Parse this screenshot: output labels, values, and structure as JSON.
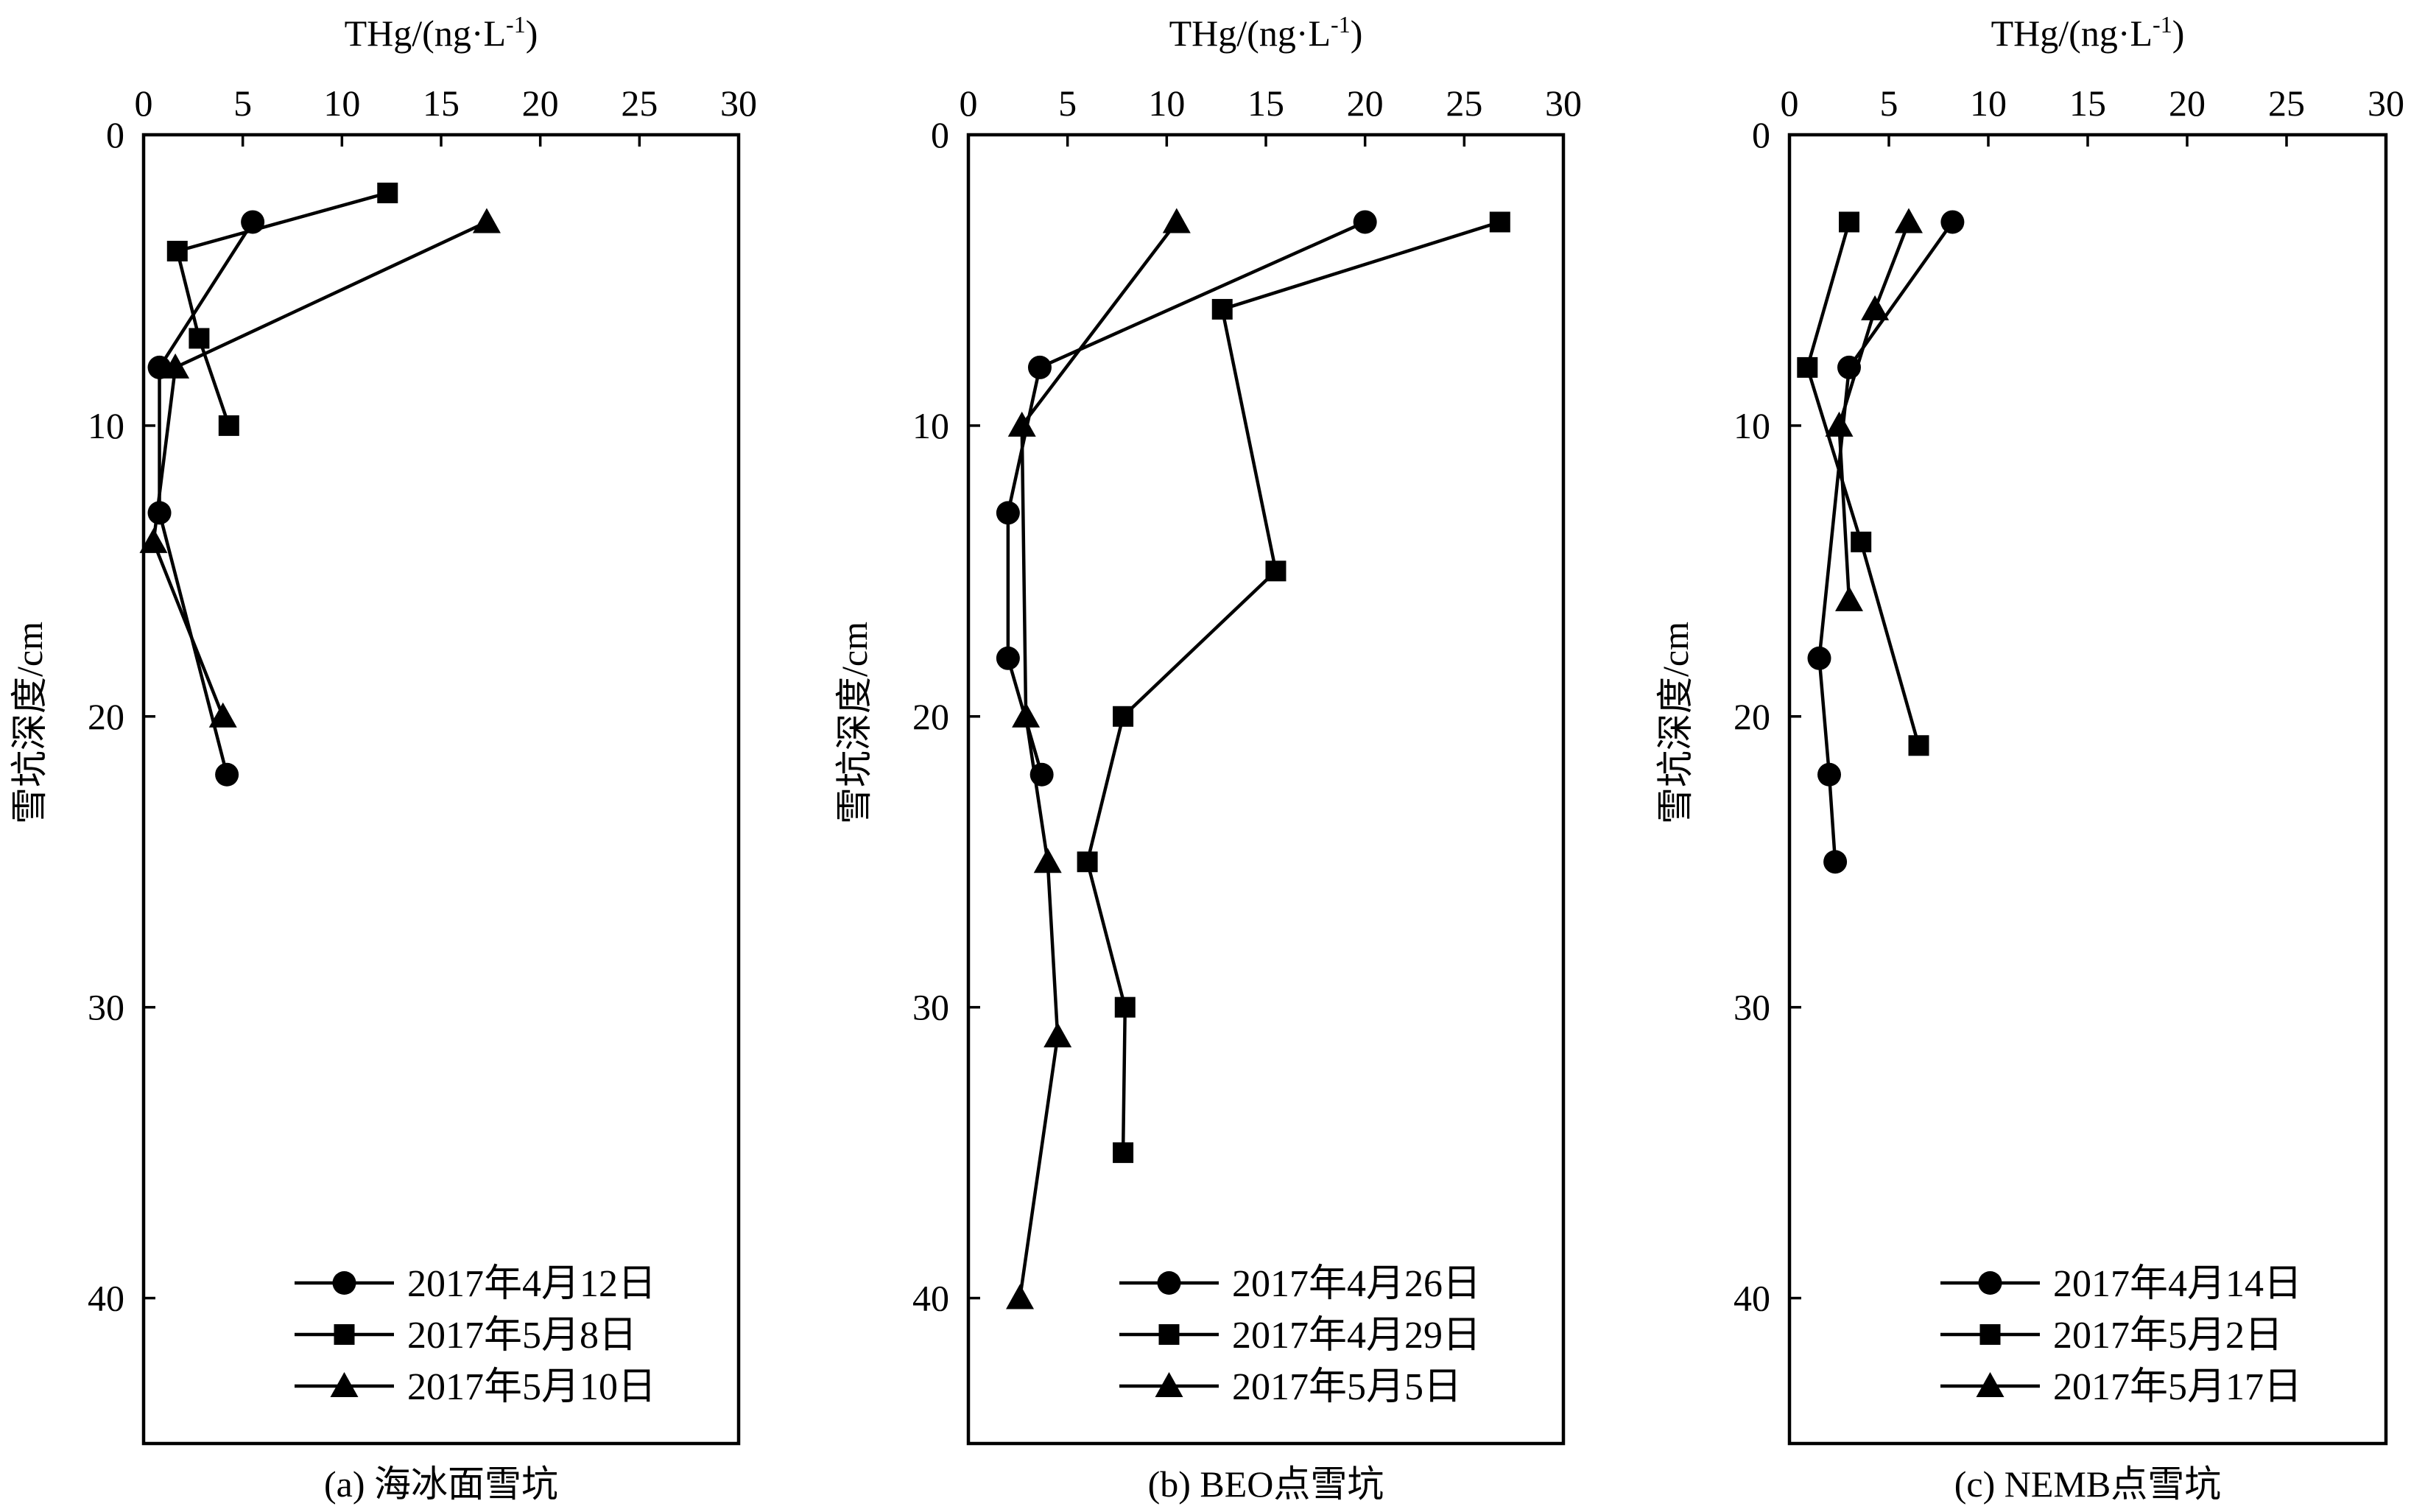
{
  "chart_data": [
    {
      "type": "line",
      "caption": "(a) 海冰面雪坑",
      "xlabel": "THg/(ng·L",
      "xlabel_sup": "-1",
      "xlabel_end": ")",
      "ylabel": "雪坑深度/cm",
      "xlim": [
        0,
        30
      ],
      "ylim": [
        0,
        45
      ],
      "y_inverted": true,
      "x_axis_position": "top",
      "xticks": [
        0,
        5,
        10,
        15,
        20,
        25,
        30
      ],
      "yticks": [
        0,
        10,
        20,
        30,
        40
      ],
      "legend_position": "bottom-right",
      "series": [
        {
          "name": "2017年4月12日",
          "marker": "circle",
          "points": [
            {
              "x": 5.5,
              "y": 3
            },
            {
              "x": 0.8,
              "y": 8
            },
            {
              "x": 0.8,
              "y": 13
            },
            {
              "x": 4.2,
              "y": 22
            }
          ]
        },
        {
          "name": "2017年5月8日",
          "marker": "square",
          "points": [
            {
              "x": 12.3,
              "y": 2
            },
            {
              "x": 1.7,
              "y": 4
            },
            {
              "x": 2.8,
              "y": 7
            },
            {
              "x": 4.3,
              "y": 10
            }
          ]
        },
        {
          "name": "2017年5月10日",
          "marker": "triangle",
          "points": [
            {
              "x": 17.3,
              "y": 3
            },
            {
              "x": 1.6,
              "y": 8
            },
            {
              "x": 0.5,
              "y": 14
            },
            {
              "x": 4.0,
              "y": 20
            }
          ]
        }
      ]
    },
    {
      "type": "line",
      "caption": "(b) BEO点雪坑",
      "xlabel": "THg/(ng·L",
      "xlabel_sup": "-1",
      "xlabel_end": ")",
      "ylabel": "雪坑深度/cm",
      "xlim": [
        0,
        30
      ],
      "ylim": [
        0,
        45
      ],
      "y_inverted": true,
      "x_axis_position": "top",
      "xticks": [
        0,
        5,
        10,
        15,
        20,
        25,
        30
      ],
      "yticks": [
        0,
        10,
        20,
        30,
        40
      ],
      "legend_position": "bottom-right",
      "series": [
        {
          "name": "2017年4月26日",
          "marker": "circle",
          "points": [
            {
              "x": 20.0,
              "y": 3
            },
            {
              "x": 3.6,
              "y": 8
            },
            {
              "x": 2.0,
              "y": 13
            },
            {
              "x": 2.0,
              "y": 18
            },
            {
              "x": 3.7,
              "y": 22
            }
          ]
        },
        {
          "name": "2017年4月29日",
          "marker": "square",
          "points": [
            {
              "x": 26.8,
              "y": 3
            },
            {
              "x": 12.8,
              "y": 6
            },
            {
              "x": 15.5,
              "y": 15
            },
            {
              "x": 7.8,
              "y": 20
            },
            {
              "x": 6.0,
              "y": 25
            },
            {
              "x": 7.9,
              "y": 30
            },
            {
              "x": 7.8,
              "y": 35
            }
          ]
        },
        {
          "name": "2017年5月5日",
          "marker": "triangle",
          "points": [
            {
              "x": 10.5,
              "y": 3
            },
            {
              "x": 2.7,
              "y": 10
            },
            {
              "x": 2.9,
              "y": 20
            },
            {
              "x": 4.0,
              "y": 25
            },
            {
              "x": 4.5,
              "y": 31
            },
            {
              "x": 2.6,
              "y": 40
            }
          ]
        }
      ]
    },
    {
      "type": "line",
      "caption": "(c) NEMB点雪坑",
      "xlabel": "THg/(ng·L",
      "xlabel_sup": "-1",
      "xlabel_end": ")",
      "ylabel": "雪坑深度/cm",
      "xlim": [
        0,
        30
      ],
      "ylim": [
        0,
        45
      ],
      "y_inverted": true,
      "x_axis_position": "top",
      "xticks": [
        0,
        5,
        10,
        15,
        20,
        25,
        30
      ],
      "yticks": [
        0,
        10,
        20,
        30,
        40
      ],
      "legend_position": "bottom-right",
      "series": [
        {
          "name": "2017年4月14日",
          "marker": "circle",
          "points": [
            {
              "x": 8.2,
              "y": 3
            },
            {
              "x": 3.0,
              "y": 8
            },
            {
              "x": 1.5,
              "y": 18
            },
            {
              "x": 2.0,
              "y": 22
            },
            {
              "x": 2.3,
              "y": 25
            }
          ]
        },
        {
          "name": "2017年5月2日",
          "marker": "square",
          "points": [
            {
              "x": 3.0,
              "y": 3
            },
            {
              "x": 0.9,
              "y": 8
            },
            {
              "x": 3.6,
              "y": 14
            },
            {
              "x": 6.5,
              "y": 21
            }
          ]
        },
        {
          "name": "2017年5月17日",
          "marker": "triangle",
          "points": [
            {
              "x": 6.0,
              "y": 3
            },
            {
              "x": 4.3,
              "y": 6
            },
            {
              "x": 2.5,
              "y": 10
            },
            {
              "x": 3.0,
              "y": 16
            }
          ]
        }
      ]
    }
  ]
}
